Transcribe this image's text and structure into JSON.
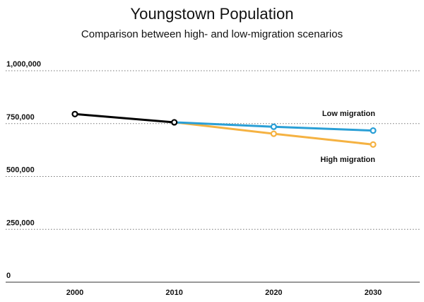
{
  "title": "Youngstown Population",
  "subtitle": "Comparison between high- and low-migration scenarios",
  "chart_data": {
    "type": "line",
    "title": "Youngstown Population",
    "subtitle": "Comparison between high- and low-migration scenarios",
    "x": [
      2000,
      2010,
      2020,
      2030
    ],
    "x_tick_labels": [
      "2000",
      "2010",
      "2020",
      "2030"
    ],
    "y_tick_labels": [
      "0",
      "250,000",
      "500,000",
      "750,000",
      "1,000,000"
    ],
    "y_ticks": [
      0,
      250000,
      500000,
      750000,
      1000000
    ],
    "ylim": [
      0,
      1000000
    ],
    "grid": "horizontal dotted",
    "series": [
      {
        "key": "historical",
        "x": [
          2000,
          2010
        ],
        "values": [
          795000,
          756000
        ],
        "color": "#000000"
      },
      {
        "name": "Low migration",
        "x": [
          2010,
          2020,
          2030
        ],
        "values": [
          756000,
          735000,
          717000
        ],
        "color": "#2a9fd6"
      },
      {
        "name": "High migration",
        "x": [
          2010,
          2020,
          2030
        ],
        "values": [
          756000,
          702000,
          651000
        ],
        "color": "#f5b242"
      }
    ]
  }
}
